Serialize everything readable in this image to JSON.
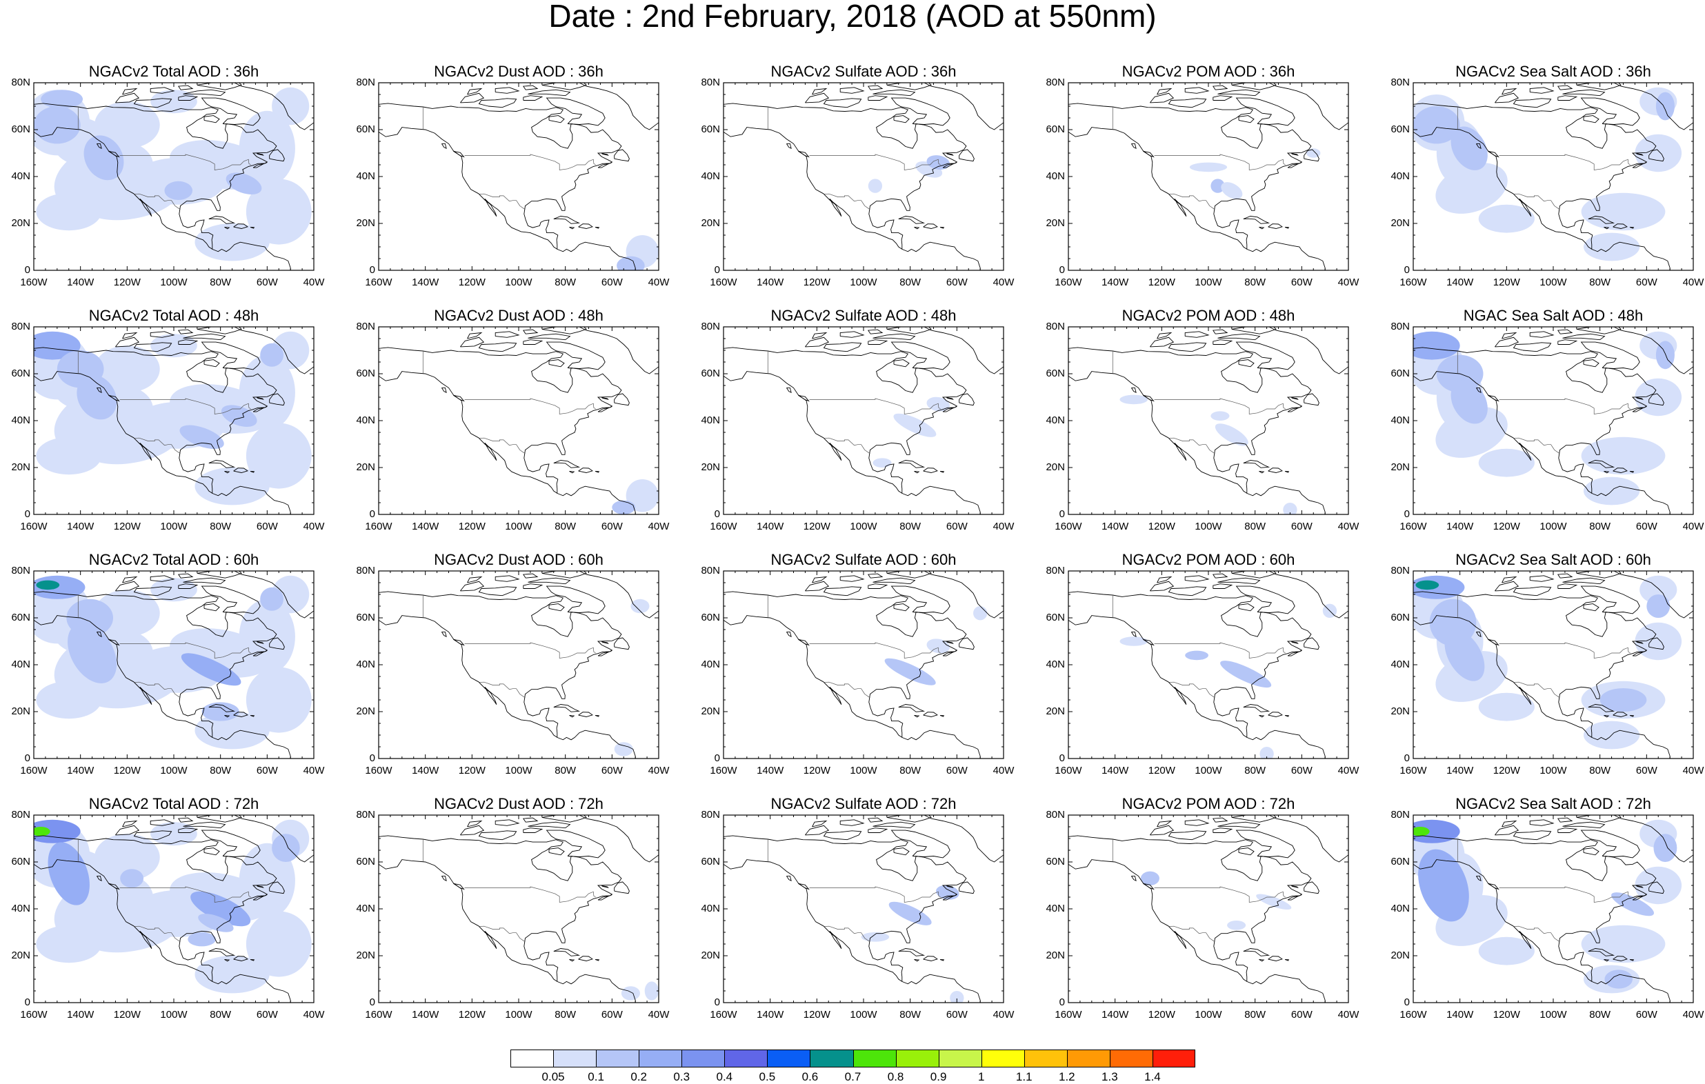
{
  "title": "Date : 2nd February, 2018 (AOD at 550nm)",
  "axes": {
    "lat_labels": [
      "80N",
      "60N",
      "40N",
      "20N",
      "0"
    ],
    "lon_labels": [
      "160W",
      "140W",
      "120W",
      "100W",
      "80W",
      "60W",
      "40W"
    ],
    "lon_range": [
      -160,
      -40
    ],
    "lat_range": [
      0,
      80
    ]
  },
  "panels": [
    [
      "NGACv2 Total AOD : 36h",
      "NGACv2 Dust AOD : 36h",
      "NGACv2 Sulfate AOD : 36h",
      "NGACv2 POM AOD : 36h",
      "NGACv2 Sea Salt AOD : 36h"
    ],
    [
      "NGACv2 Total AOD : 48h",
      "NGACv2 Dust AOD : 48h",
      "NGACv2 Sulfate AOD : 48h",
      "NGACv2 POM AOD : 48h",
      "NGAC Sea Salt AOD : 48h"
    ],
    [
      "NGACv2 Total AOD : 60h",
      "NGACv2 Dust AOD : 60h",
      "NGACv2 Sulfate AOD : 60h",
      "NGACv2 POM AOD : 60h",
      "NGACv2 Sea Salt AOD : 60h"
    ],
    [
      "NGACv2 Total AOD : 72h",
      "NGACv2 Dust AOD : 72h",
      "NGACv2 Sulfate AOD : 72h",
      "NGACv2 POM AOD : 72h",
      "NGACv2 Sea Salt  AOD : 72h"
    ]
  ],
  "colorbar": {
    "labels": [
      "0.05",
      "0.1",
      "0.2",
      "0.3",
      "0.4",
      "0.5",
      "0.6",
      "0.7",
      "0.8",
      "0.9",
      "1",
      "1.1",
      "1.2",
      "1.3",
      "1.4"
    ],
    "colors": [
      "#ffffff",
      "#d6e0fa",
      "#b5c6f7",
      "#96aef5",
      "#7b93f0",
      "#6066e8",
      "#0a5ef5",
      "#05918c",
      "#4de50a",
      "#99f00a",
      "#c8f54a",
      "#ffff0a",
      "#ffc20a",
      "#ff9a05",
      "#ff6b05",
      "#ff1f0a"
    ]
  },
  "colors": {
    "aod_low": "#d6e0fa",
    "aod_mid": "#b5c6f7",
    "aod_high": "#96aef5",
    "aod_peak": "#4de50a",
    "coast": "#000000"
  }
}
